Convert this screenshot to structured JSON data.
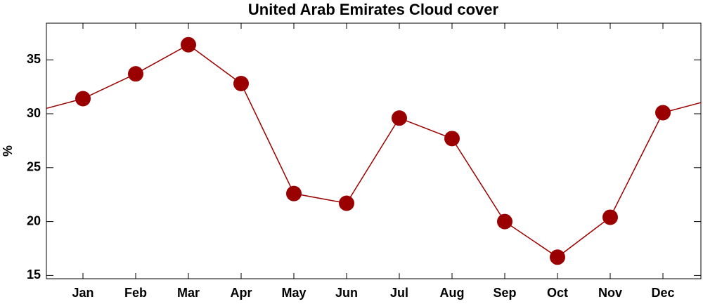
{
  "chart_data": {
    "type": "line",
    "title": "United Arab Emirates Cloud cover",
    "ylabel": "%",
    "categories": [
      "Jan",
      "Feb",
      "Mar",
      "Apr",
      "May",
      "Jun",
      "Jul",
      "Aug",
      "Sep",
      "Oct",
      "Nov",
      "Dec"
    ],
    "series": [
      {
        "name": "Cloud cover",
        "color": "#9a0000",
        "values": [
          31.4,
          33.7,
          36.4,
          32.8,
          22.6,
          21.7,
          29.6,
          27.7,
          20.0,
          16.7,
          20.4,
          30.1
        ]
      }
    ],
    "ylim": [
      14.7,
      38.4
    ],
    "yticks": [
      15,
      20,
      25,
      30,
      35
    ],
    "grid": false
  }
}
